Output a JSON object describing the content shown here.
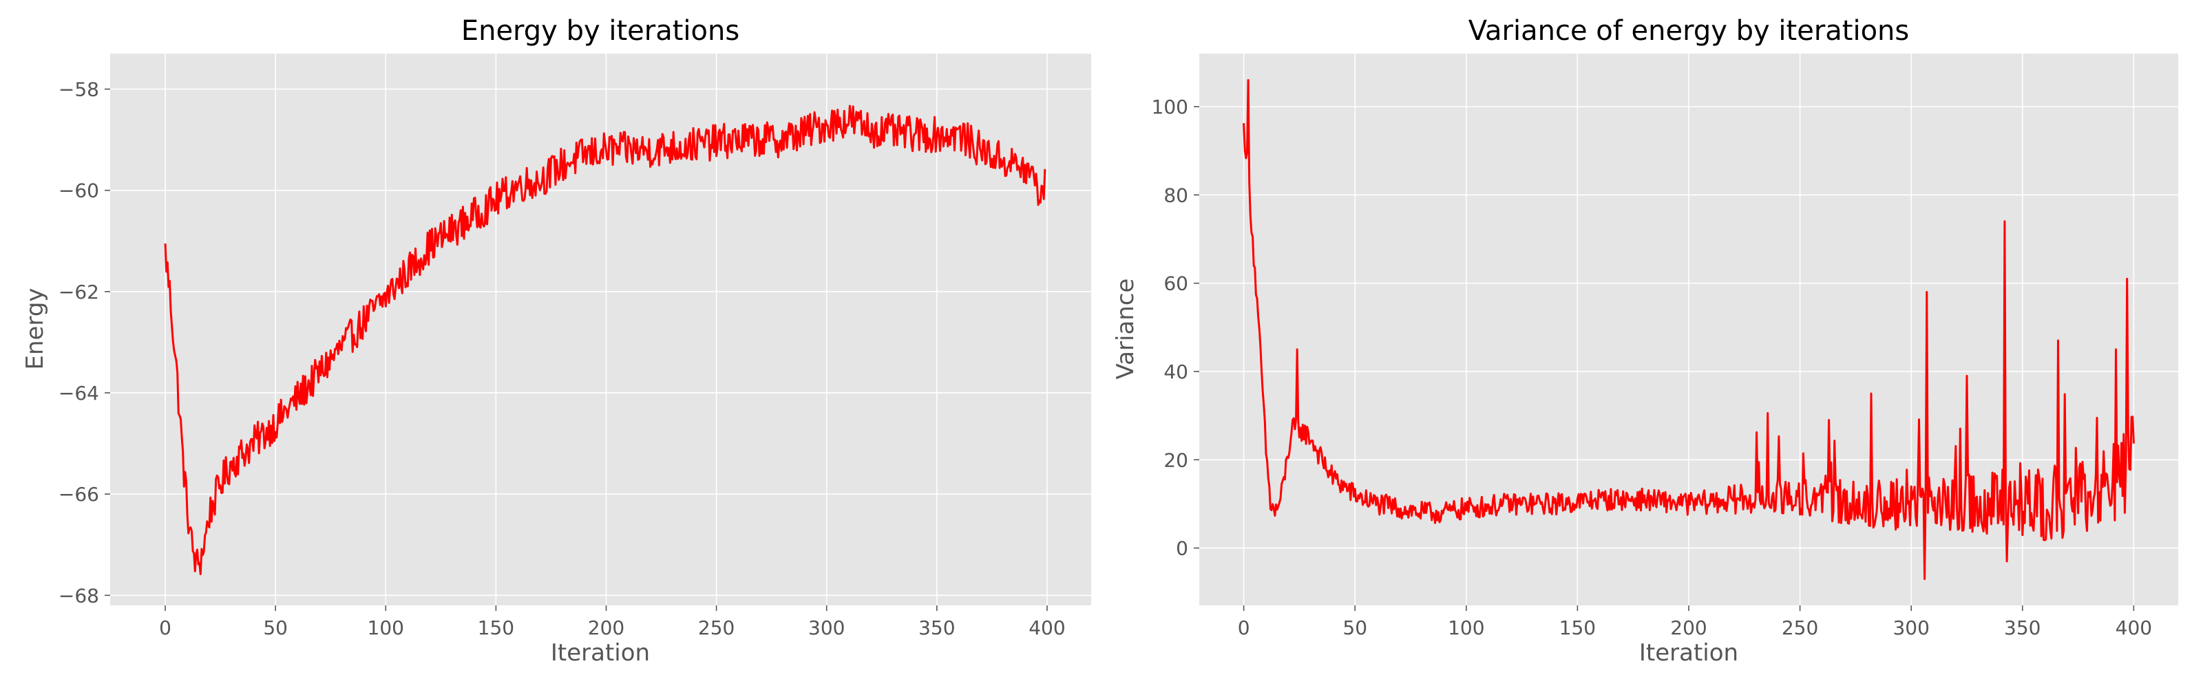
{
  "chart_data": [
    {
      "type": "line",
      "title": "Energy by iterations",
      "xlabel": "Iteration",
      "ylabel": "Energy",
      "xlim": [
        -25,
        420
      ],
      "ylim": [
        -68.2,
        -57.3
      ],
      "xticks": [
        0,
        50,
        100,
        150,
        200,
        250,
        300,
        350,
        400
      ],
      "yticks": [
        -68,
        -66,
        -64,
        -62,
        -60,
        -58
      ],
      "xtick_labels": [
        "0",
        "50",
        "100",
        "150",
        "200",
        "250",
        "300",
        "350",
        "400"
      ],
      "ytick_labels": [
        "−68",
        "−66",
        "−64",
        "−62",
        "−60",
        "−58"
      ],
      "grid": true,
      "series": [
        {
          "color": "#ff0000",
          "noise": 0.35,
          "x": [
            0,
            2,
            5,
            8,
            10,
            12,
            14,
            16,
            18,
            20,
            25,
            30,
            40,
            50,
            60,
            70,
            80,
            90,
            100,
            110,
            120,
            130,
            140,
            150,
            160,
            170,
            180,
            190,
            200,
            220,
            240,
            260,
            280,
            300,
            310,
            320,
            340,
            360,
            370,
            380,
            390,
            395,
            397,
            399
          ],
          "y": [
            -61.2,
            -62.0,
            -63.5,
            -65.3,
            -66.3,
            -67.0,
            -67.4,
            -67.3,
            -66.9,
            -66.4,
            -65.8,
            -65.4,
            -65.0,
            -64.6,
            -64.1,
            -63.6,
            -63.1,
            -62.6,
            -62.1,
            -61.6,
            -61.1,
            -60.8,
            -60.5,
            -60.2,
            -59.9,
            -59.8,
            -59.5,
            -59.3,
            -59.2,
            -59.2,
            -59.1,
            -59.0,
            -59.0,
            -58.7,
            -58.6,
            -58.8,
            -58.9,
            -58.9,
            -59.2,
            -59.4,
            -59.6,
            -59.8,
            -60.2,
            -59.9
          ]
        }
      ]
    },
    {
      "type": "line",
      "title": "Variance of energy by iterations",
      "xlabel": "Iteration",
      "ylabel": "Variance",
      "xlim": [
        -20,
        420
      ],
      "ylim": [
        -13,
        112
      ],
      "xticks": [
        0,
        50,
        100,
        150,
        200,
        250,
        300,
        350,
        400
      ],
      "yticks": [
        0,
        20,
        40,
        60,
        80,
        100
      ],
      "xtick_labels": [
        "0",
        "50",
        "100",
        "150",
        "200",
        "250",
        "300",
        "350",
        "400"
      ],
      "ytick_labels": [
        "0",
        "20",
        "40",
        "60",
        "80",
        "100"
      ],
      "grid": true,
      "series": [
        {
          "color": "#ff0000",
          "noise": 2.5,
          "x": [
            0,
            2,
            4,
            6,
            8,
            10,
            12,
            14,
            16,
            18,
            20,
            22,
            25,
            30,
            35,
            40,
            50,
            60,
            70,
            80,
            90,
            100,
            120,
            140,
            160,
            180,
            200,
            220,
            240,
            260,
            280,
            300,
            320,
            340,
            360,
            380,
            390,
            395,
            398,
            400
          ],
          "y": [
            95,
            85,
            70,
            55,
            40,
            22,
            10,
            8,
            10,
            15,
            22,
            27,
            27,
            25,
            20,
            16,
            12,
            10,
            9,
            8,
            8,
            9,
            10,
            10,
            11,
            11,
            10,
            11,
            12,
            11,
            10,
            10,
            10,
            10,
            10,
            12,
            14,
            16,
            20,
            25
          ]
        }
      ],
      "spikes": [
        [
          2,
          106
        ],
        [
          24,
          45
        ],
        [
          307,
          58
        ],
        [
          306,
          -7
        ],
        [
          325,
          39
        ],
        [
          342,
          74
        ],
        [
          343,
          -3
        ],
        [
          366,
          47
        ],
        [
          397,
          61
        ],
        [
          392,
          45
        ],
        [
          282,
          35
        ],
        [
          263,
          29
        ]
      ]
    }
  ]
}
